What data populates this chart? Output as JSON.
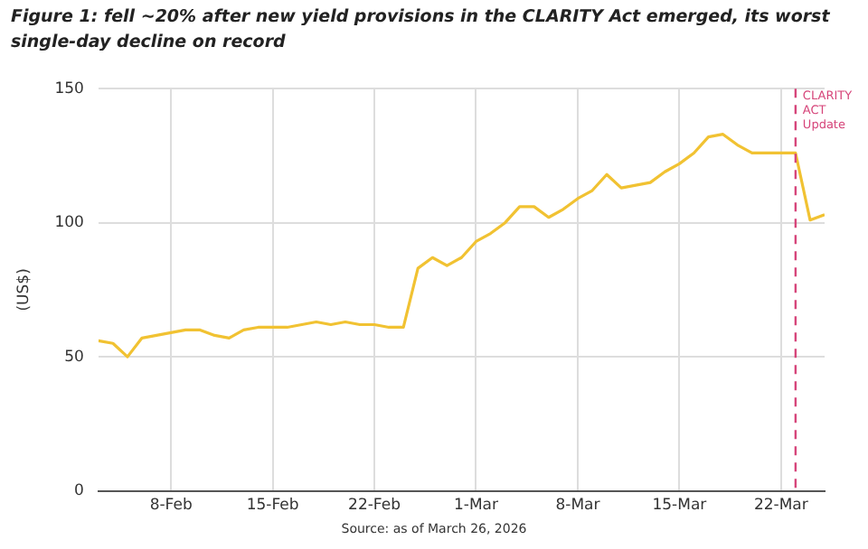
{
  "chart_data": {
    "type": "line",
    "title": "Figure 1: fell ~20% after new yield provisions in the CLARITY Act emerged, its worst single-day decline on record",
    "ylabel": "(US$)",
    "x": [
      "2026-02-03",
      "2026-02-04",
      "2026-02-05",
      "2026-02-06",
      "2026-02-07",
      "2026-02-08",
      "2026-02-09",
      "2026-02-10",
      "2026-02-11",
      "2026-02-12",
      "2026-02-13",
      "2026-02-14",
      "2026-02-15",
      "2026-02-16",
      "2026-02-17",
      "2026-02-18",
      "2026-02-19",
      "2026-02-20",
      "2026-02-21",
      "2026-02-22",
      "2026-02-23",
      "2026-02-24",
      "2026-02-25",
      "2026-02-26",
      "2026-02-27",
      "2026-02-28",
      "2026-03-01",
      "2026-03-02",
      "2026-03-03",
      "2026-03-04",
      "2026-03-05",
      "2026-03-06",
      "2026-03-07",
      "2026-03-08",
      "2026-03-09",
      "2026-03-10",
      "2026-03-11",
      "2026-03-12",
      "2026-03-13",
      "2026-03-14",
      "2026-03-15",
      "2026-03-16",
      "2026-03-17",
      "2026-03-18",
      "2026-03-19",
      "2026-03-20",
      "2026-03-21",
      "2026-03-22",
      "2026-03-23",
      "2026-03-24",
      "2026-03-25"
    ],
    "series": [
      {
        "color": "#f1c232",
        "values": [
          56,
          55,
          50,
          57,
          58,
          59,
          60,
          60,
          58,
          57,
          60,
          61,
          61,
          61,
          62,
          63,
          62,
          63,
          62,
          62,
          61,
          61,
          83,
          87,
          84,
          87,
          93,
          96,
          100,
          106,
          106,
          102,
          105,
          109,
          112,
          118,
          113,
          114,
          115,
          119,
          122,
          126,
          132,
          133,
          129,
          126,
          126,
          126,
          126,
          101,
          103
        ]
      }
    ],
    "xlim": [
      "2026-02-03",
      "2026-03-25"
    ],
    "xticks": [
      {
        "value": "2026-02-08",
        "label": "8-Feb"
      },
      {
        "value": "2026-02-15",
        "label": "15-Feb"
      },
      {
        "value": "2026-02-22",
        "label": "22-Feb"
      },
      {
        "value": "2026-03-01",
        "label": "1-Mar"
      },
      {
        "value": "2026-03-08",
        "label": "8-Mar"
      },
      {
        "value": "2026-03-15",
        "label": "15-Mar"
      },
      {
        "value": "2026-03-22",
        "label": "22-Mar"
      }
    ],
    "ylim": [
      0,
      150
    ],
    "yticks": [
      0,
      50,
      100,
      150
    ],
    "grid": true,
    "marker": "none",
    "line_style": "solid",
    "ref_lines": [
      {
        "axis": "x",
        "value": "2026-03-23",
        "label": "CLARITY ACT Update",
        "color": "#d6457a",
        "line_style": "dashed"
      }
    ],
    "annotations": [
      "Source: as of March 26, 2026"
    ]
  }
}
